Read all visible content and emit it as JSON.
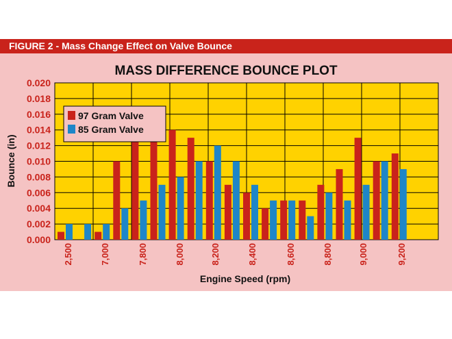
{
  "figure": {
    "header": "FIGURE 2 - Mass Change Effect on Valve Bounce"
  },
  "colors": {
    "header_bg": "#c9231b",
    "figure_bg": "#f5c3c3",
    "plot_bg": "#ffd200",
    "series_1": "#c9231b",
    "series_2": "#1e86c8"
  },
  "chart_data": {
    "type": "bar",
    "title": "MASS DIFFERENCE BOUNCE PLOT",
    "xlabel": "Engine Speed (rpm)",
    "ylabel": "Bounce (in)",
    "ylim": [
      0,
      0.02
    ],
    "yticks": [
      "0.000",
      "0.002",
      "0.004",
      "0.006",
      "0.008",
      "0.010",
      "0.012",
      "0.014",
      "0.016",
      "0.018",
      "0.020"
    ],
    "x_tick_labels": [
      "2,500",
      "7,000",
      "7,800",
      "8,000",
      "8,200",
      "8,400",
      "8,600",
      "8,800",
      "9,000",
      "9,200"
    ],
    "grid": true,
    "legend_position": "top-left",
    "series": [
      {
        "name": "97 Gram Valve",
        "values": [
          0.001,
          0.0,
          0.001,
          0.01,
          0.013,
          0.013,
          0.014,
          0.013,
          0.01,
          0.007,
          0.006,
          0.004,
          0.005,
          0.005,
          0.007,
          0.009,
          0.013,
          0.01,
          0.011
        ]
      },
      {
        "name": "85 Gram Valve",
        "values": [
          0.002,
          0.002,
          0.002,
          0.004,
          0.005,
          0.007,
          0.008,
          0.01,
          0.012,
          0.01,
          0.007,
          0.005,
          0.005,
          0.003,
          0.006,
          0.005,
          0.007,
          0.01,
          0.009
        ]
      }
    ]
  }
}
